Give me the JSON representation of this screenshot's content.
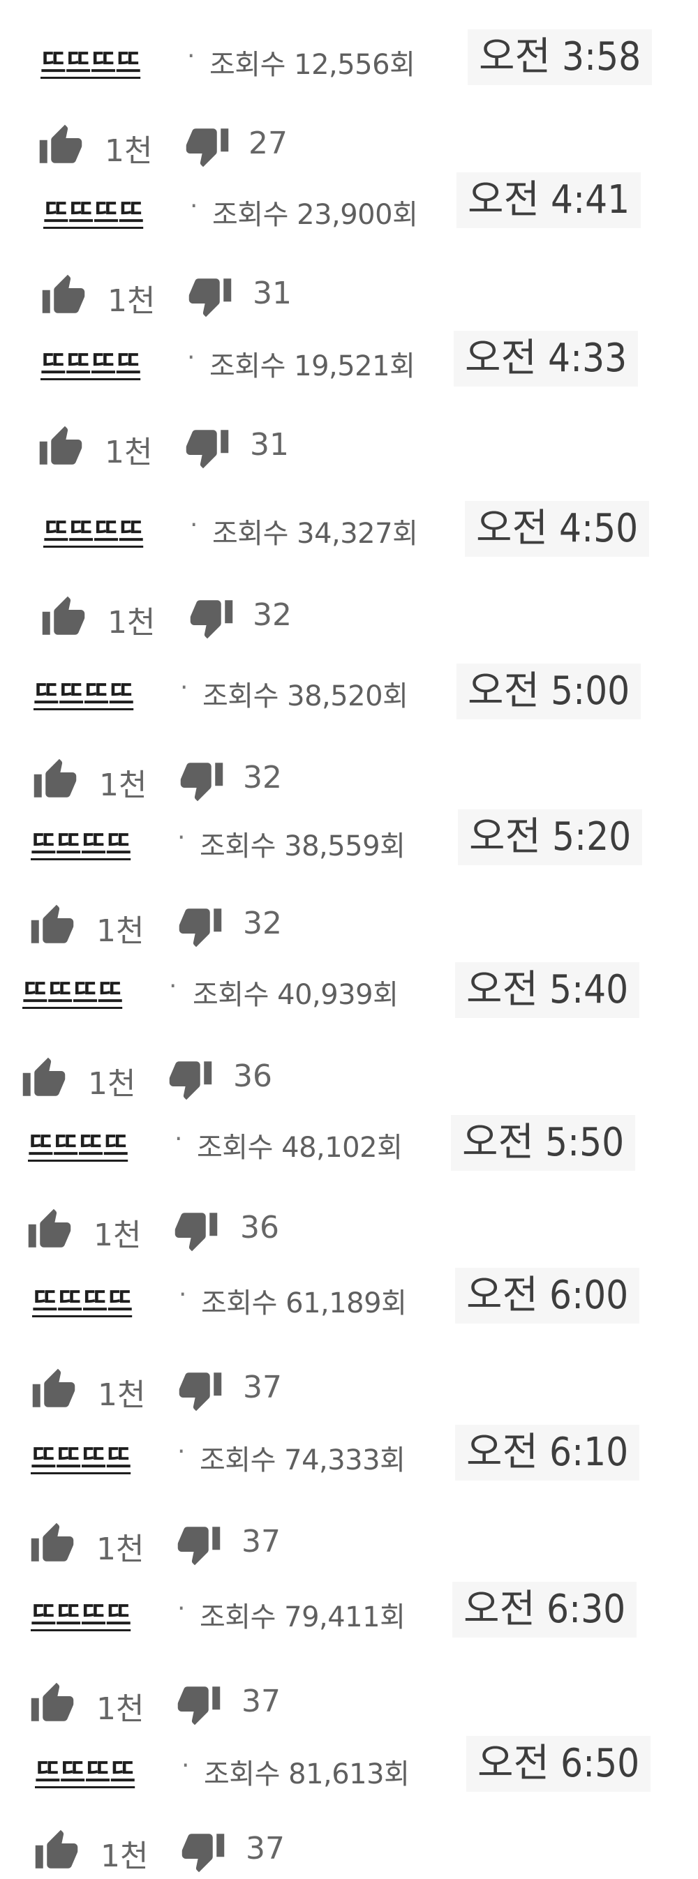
{
  "entries": [
    {
      "title": "뜨뜨뜨뜨",
      "views": "조회수 12,556회",
      "time": "오전 3:58",
      "likes": "1천",
      "dislikes": "27"
    },
    {
      "title": "뜨뜨뜨뜨",
      "views": "조회수 23,900회",
      "time": "오전 4:41",
      "likes": "1천",
      "dislikes": "31"
    },
    {
      "title": "뜨뜨뜨뜨",
      "views": "조회수 19,521회",
      "time": "오전 4:33",
      "likes": "1천",
      "dislikes": "31"
    },
    {
      "title": "뜨뜨뜨뜨",
      "views": "조회수 34,327회",
      "time": "오전 4:50",
      "likes": "1천",
      "dislikes": "32"
    },
    {
      "title": "뜨뜨뜨뜨",
      "views": "조회수 38,520회",
      "time": "오전 5:00",
      "likes": "1천",
      "dislikes": "32"
    },
    {
      "title": "뜨뜨뜨뜨",
      "views": "조회수 38,559회",
      "time": "오전 5:20",
      "likes": "1천",
      "dislikes": "32"
    },
    {
      "title": "뜨뜨뜨뜨",
      "views": "조회수 40,939회",
      "time": "오전 5:40",
      "likes": "1천",
      "dislikes": "36"
    },
    {
      "title": "뜨뜨뜨뜨",
      "views": "조회수 48,102회",
      "time": "오전 5:50",
      "likes": "1천",
      "dislikes": "36"
    },
    {
      "title": "뜨뜨뜨뜨",
      "views": "조회수 61,189회",
      "time": "오전 6:00",
      "likes": "1천",
      "dislikes": "37"
    },
    {
      "title": "뜨뜨뜨뜨",
      "views": "조회수 74,333회",
      "time": "오전 6:10",
      "likes": "1천",
      "dislikes": "37"
    },
    {
      "title": "뜨뜨뜨뜨",
      "views": "조회수 79,411회",
      "time": "오전 6:30",
      "likes": "1천",
      "dislikes": "37"
    },
    {
      "title": "뜨뜨뜨뜨",
      "views": "조회수 81,613회",
      "time": "오전 6:50",
      "likes": "1천",
      "dislikes": "37"
    }
  ],
  "icons": {
    "like": "thumbs-up-icon",
    "dislike": "thumbs-down-icon"
  },
  "separator": "·",
  "colors": {
    "icon": "#606060",
    "time_bg": "#f6f6f6",
    "title": "#1e1e1e"
  }
}
